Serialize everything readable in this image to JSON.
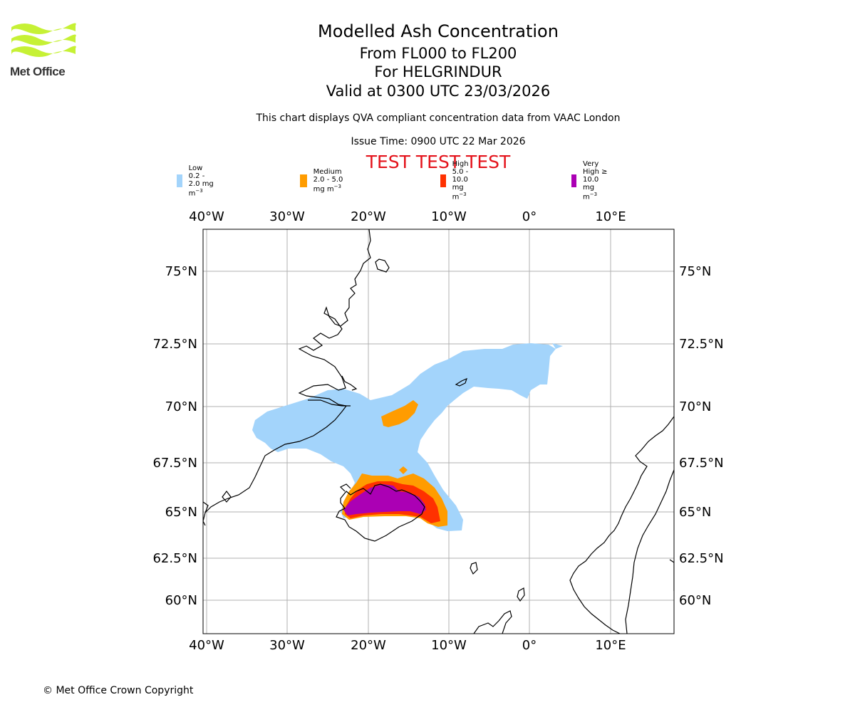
{
  "logo": {
    "name": "Met Office",
    "icon": "met-office-wave-logo",
    "color": "#c6f135"
  },
  "header": {
    "title": "Modelled Ash Concentration",
    "levels": "From FL000 to FL200",
    "location": "For HELGRINDUR",
    "valid": "Valid at 0300 UTC 23/03/2026",
    "description": "This chart displays QVA compliant concentration data from VAAC London",
    "issue_time": "Issue Time: 0900 UTC 22 Mar 2026",
    "test_banner": "TEST TEST TEST"
  },
  "legend": [
    {
      "label": "Low 0.2 - 2.0 mg m",
      "unit_exp": "−3",
      "color": "#a3d4fb"
    },
    {
      "label": "Medium 2.0 - 5.0 mg m",
      "unit_exp": "−3",
      "color": "#ff9c00"
    },
    {
      "label": "High 5.0 - 10.0 mg m",
      "unit_exp": "−3",
      "color": "#ff3100"
    },
    {
      "label": "Very High ≥ 10.0 mg m",
      "unit_exp": "−3",
      "color": "#ab00b4"
    }
  ],
  "map": {
    "lon_ticks": [
      "40°W",
      "30°W",
      "20°W",
      "10°W",
      "0°",
      "10°E"
    ],
    "lat_ticks": [
      "75°N",
      "72.5°N",
      "70°N",
      "67.5°N",
      "65°N",
      "62.5°N",
      "60°N"
    ],
    "gridlines": true
  },
  "footer": "© Met Office Crown Copyright"
}
